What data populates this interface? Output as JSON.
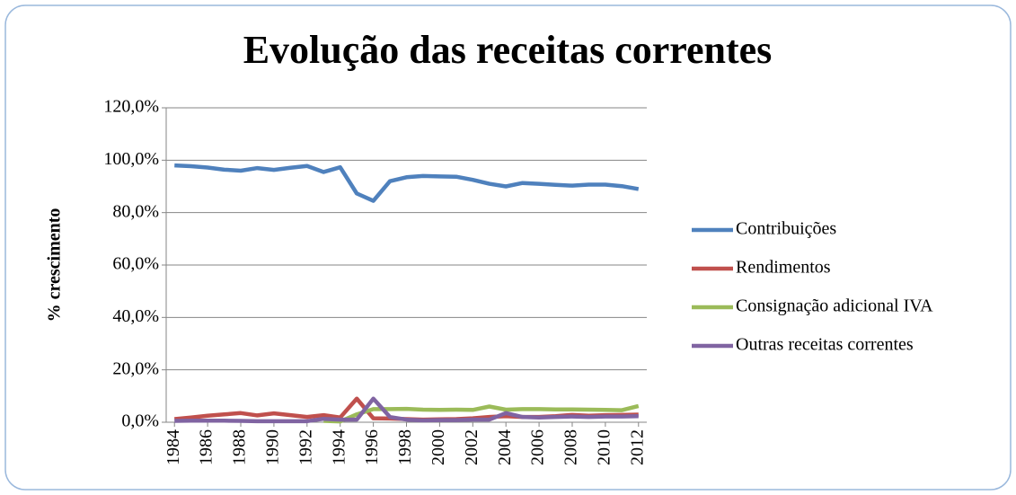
{
  "chart_data": {
    "type": "line",
    "title": "Evolução das receitas correntes",
    "y_label": "% crescimento",
    "x": [
      1984,
      1985,
      1986,
      1987,
      1988,
      1989,
      1990,
      1991,
      1992,
      1993,
      1994,
      1995,
      1996,
      1997,
      1998,
      1999,
      2000,
      2001,
      2002,
      2003,
      2004,
      2005,
      2006,
      2007,
      2008,
      2009,
      2010,
      2011,
      2012
    ],
    "xlim": [
      1983.5,
      2012.5
    ],
    "xticks": [
      1984,
      1986,
      1988,
      1990,
      1992,
      1994,
      1996,
      1998,
      2000,
      2002,
      2004,
      2006,
      2008,
      2010,
      2012
    ],
    "ylim": [
      0,
      120
    ],
    "yticks": [
      {
        "value": 0,
        "label": "0,0%"
      },
      {
        "value": 20,
        "label": "20,0%"
      },
      {
        "value": 40,
        "label": "40,0%"
      },
      {
        "value": 60,
        "label": "60,0%"
      },
      {
        "value": 80,
        "label": "80,0%"
      },
      {
        "value": 100,
        "label": "100,0%"
      },
      {
        "value": 120,
        "label": "120,0%"
      }
    ],
    "grid": true,
    "legend": "right",
    "series": [
      {
        "name": "Contribuições",
        "color": "#4f81bd",
        "values": [
          98,
          97.7,
          97.2,
          96.4,
          96,
          97,
          96.3,
          97.1,
          97.8,
          95.5,
          97.3,
          87.3,
          84.5,
          92,
          93.5,
          94,
          93.8,
          93.7,
          92.5,
          91,
          90,
          91.3,
          91,
          90.6,
          90.3,
          90.7,
          90.7,
          90.1,
          89
        ]
      },
      {
        "name": "Rendimentos",
        "color": "#c0504d",
        "values": [
          1.2,
          1.8,
          2.5,
          3,
          3.5,
          2.6,
          3.4,
          2.7,
          2,
          2.7,
          1.8,
          9,
          1.5,
          1.4,
          1.2,
          1,
          1.1,
          1.2,
          1.5,
          2,
          2.3,
          2,
          2,
          2.3,
          2.8,
          2.5,
          2.7,
          2.8,
          2.9
        ]
      },
      {
        "name": "Consignação adicional IVA",
        "color": "#9bbb59",
        "values": [
          null,
          null,
          null,
          null,
          null,
          null,
          null,
          null,
          null,
          0.5,
          0.3,
          3,
          5,
          5,
          5.1,
          4.8,
          4.7,
          4.8,
          4.7,
          6,
          4.8,
          5,
          5,
          4.9,
          4.9,
          4.8,
          4.7,
          4.6,
          6.2
        ]
      },
      {
        "name": "Outras receitas correntes",
        "color": "#8064a2",
        "values": [
          0.5,
          0.6,
          0.6,
          0.6,
          0.5,
          0.4,
          0.4,
          0.4,
          0.4,
          1.3,
          1,
          1,
          9,
          2,
          1,
          0.7,
          0.8,
          0.8,
          1,
          1,
          3.5,
          2,
          1.8,
          2,
          2.2,
          2,
          2.2,
          2.2,
          2.3
        ]
      }
    ]
  }
}
